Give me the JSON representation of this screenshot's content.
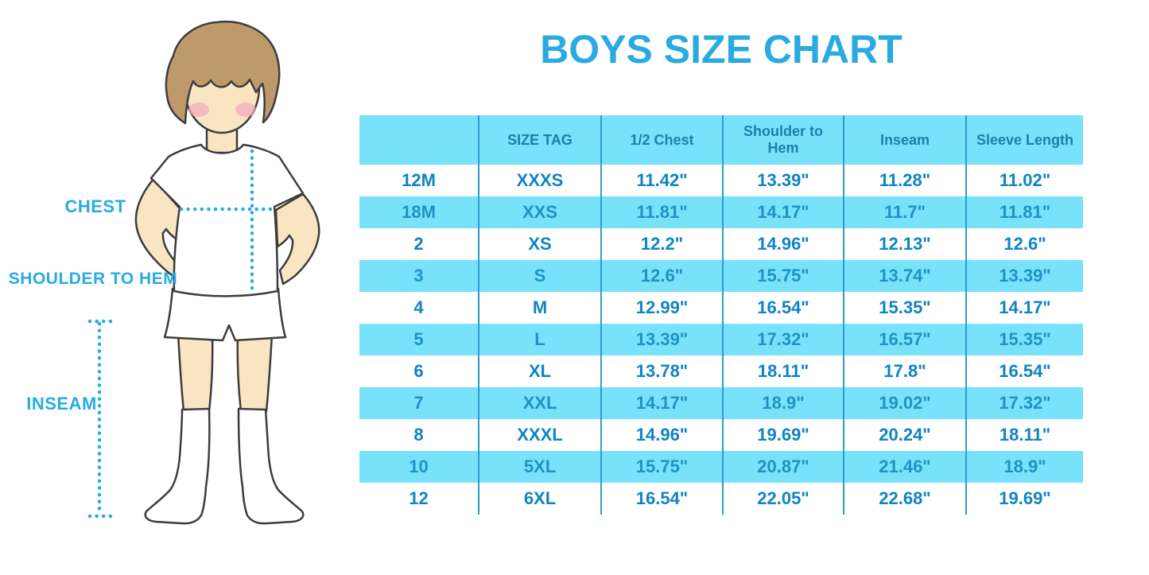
{
  "title": "BOYS SIZE CHART",
  "figure": {
    "description": "boy-in-tshirt-shorts-and-knee-socks-illustration",
    "labels": {
      "chest": "CHEST",
      "shoulder_to_hem": "SHOULDER TO HEM",
      "inseam": "INSEAM"
    }
  },
  "colors": {
    "accent_blue": "#29ABE2",
    "table_fill_blue": "#79E2FB",
    "header_text": "#1B80A9",
    "row_text_on_white": "#0E84C4",
    "row_text_on_fill": "#1E93C2",
    "grid_line": "#2E9CC9",
    "skin": "#F9E5C2",
    "hair": "#BE9A6B",
    "outline": "#3D3D3D"
  },
  "chart_data": {
    "type": "table",
    "title": "BOYS SIZE CHART",
    "columns": [
      "",
      "SIZE TAG",
      "1/2 Chest",
      "Shoulder to Hem",
      "Inseam",
      "Sleeve Length"
    ],
    "rows": [
      [
        "12M",
        "XXXS",
        "11.42\"",
        "13.39\"",
        "11.28\"",
        "11.02\""
      ],
      [
        "18M",
        "XXS",
        "11.81\"",
        "14.17\"",
        "11.7\"",
        "11.81\""
      ],
      [
        "2",
        "XS",
        "12.2\"",
        "14.96\"",
        "12.13\"",
        "12.6\""
      ],
      [
        "3",
        "S",
        "12.6\"",
        "15.75\"",
        "13.74\"",
        "13.39\""
      ],
      [
        "4",
        "M",
        "12.99\"",
        "16.54\"",
        "15.35\"",
        "14.17\""
      ],
      [
        "5",
        "L",
        "13.39\"",
        "17.32\"",
        "16.57\"",
        "15.35\""
      ],
      [
        "6",
        "XL",
        "13.78\"",
        "18.11\"",
        "17.8\"",
        "16.54\""
      ],
      [
        "7",
        "XXL",
        "14.17\"",
        "18.9\"",
        "19.02\"",
        "17.32\""
      ],
      [
        "8",
        "XXXL",
        "14.96\"",
        "19.69\"",
        "20.24\"",
        "18.11\""
      ],
      [
        "10",
        "5XL",
        "15.75\"",
        "20.87\"",
        "21.46\"",
        "18.9\""
      ],
      [
        "12",
        "6XL",
        "16.54\"",
        "22.05\"",
        "22.68\"",
        "19.69\""
      ]
    ],
    "row_striping": "alternating white / light-blue starting with white",
    "grid": "vertical column separators only, no outer border"
  }
}
